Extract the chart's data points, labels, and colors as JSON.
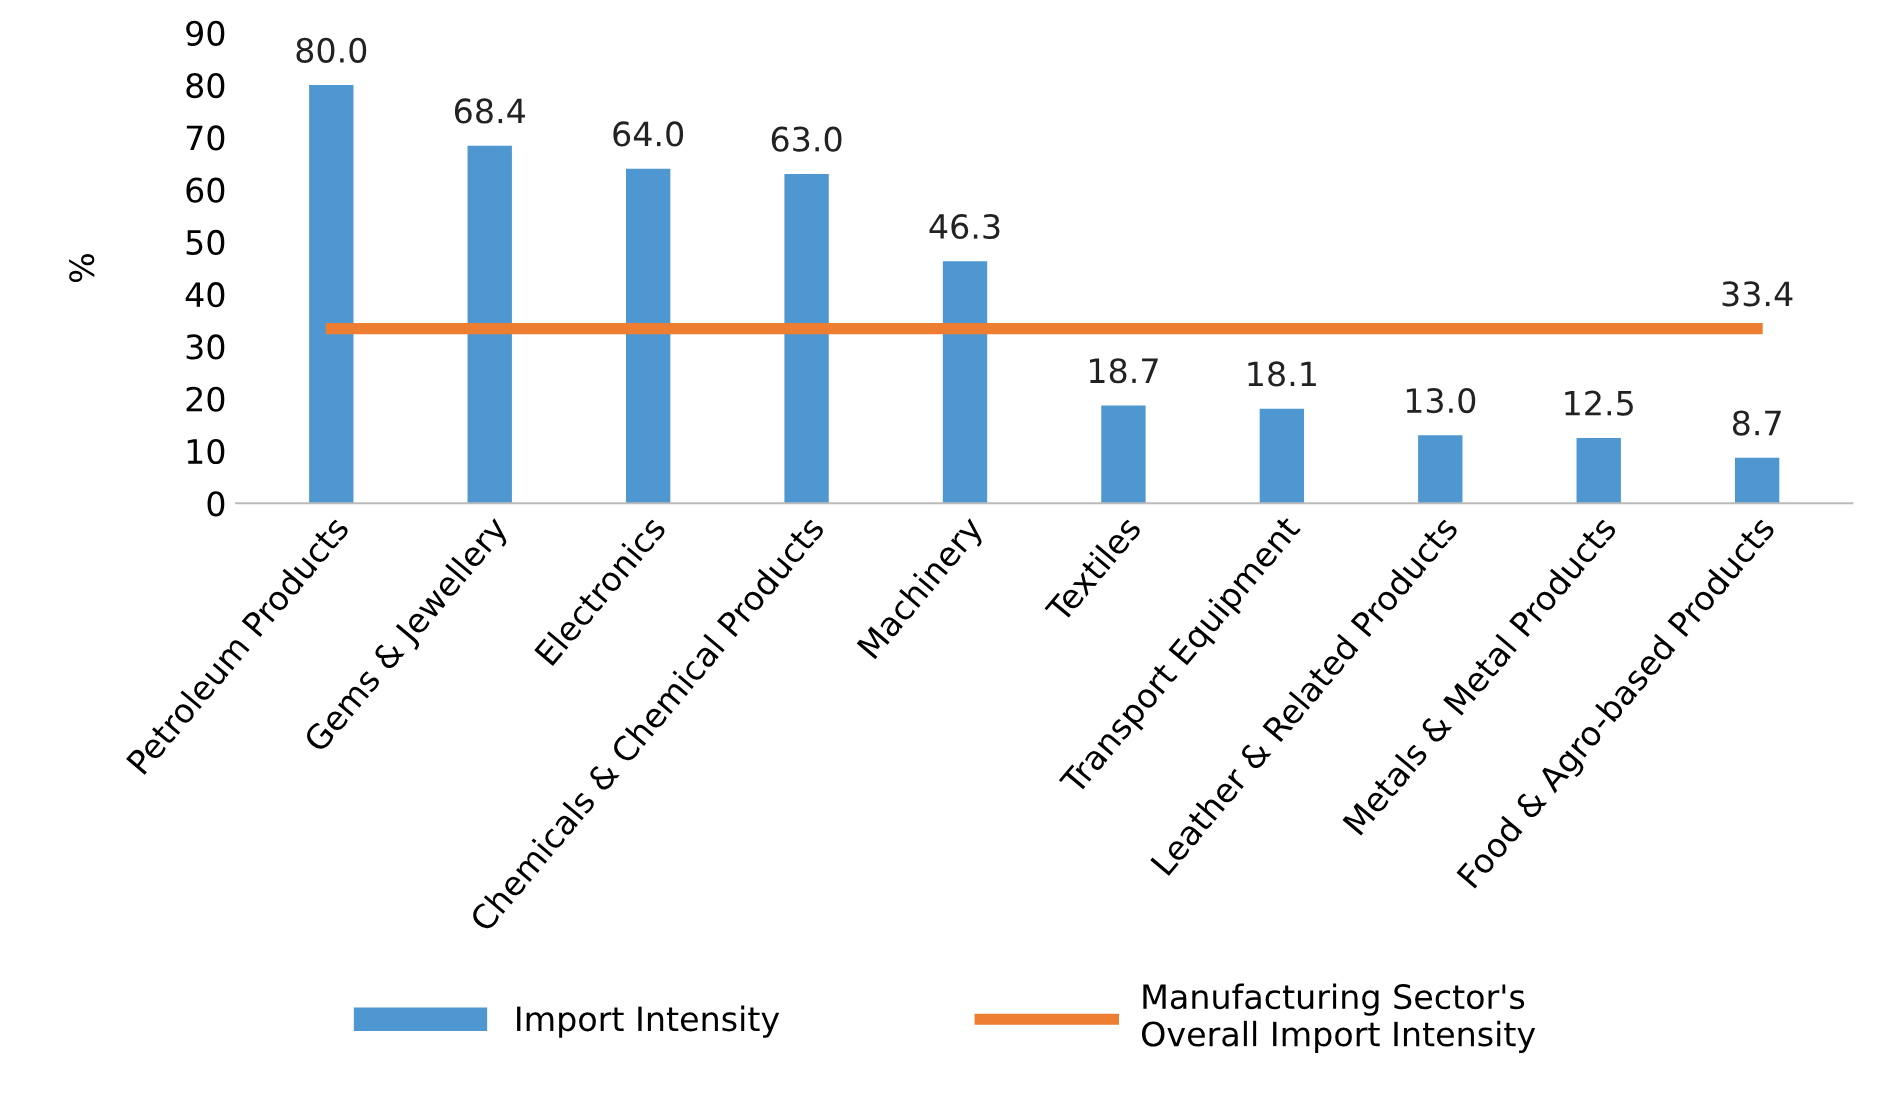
{
  "chart_data": {
    "type": "bar",
    "ylabel": "%",
    "categories": [
      "Petroleum Products",
      "Gems & Jewellery",
      "Electronics",
      "Chemicals & Chemical Products",
      "Machinery",
      "Textiles",
      "Transport Equipment",
      "Leather & Related Products",
      "Metals & Metal Products",
      "Food & Agro-based Products"
    ],
    "series": [
      {
        "name": "Import Intensity",
        "color": "#4e97d1",
        "values": [
          80.0,
          68.4,
          64.0,
          63.0,
          46.3,
          18.7,
          18.1,
          13.0,
          12.5,
          8.7
        ],
        "value_labels": [
          "80.0",
          "68.4",
          "64.0",
          "63.0",
          "46.3",
          "18.7",
          "18.1",
          "13.0",
          "12.5",
          "8.7"
        ]
      },
      {
        "name": "Manufacturing Sector's\nOverall Import Intensity",
        "type": "line",
        "color": "#ed7d31",
        "values": [
          33.4,
          33.4,
          33.4,
          33.4,
          33.4,
          33.4,
          33.4,
          33.4,
          33.4,
          33.4
        ],
        "value_labels": [
          null,
          null,
          null,
          null,
          null,
          null,
          null,
          null,
          null,
          "33.4"
        ]
      }
    ],
    "ylim": [
      0,
      90
    ],
    "yticks": [
      0,
      10,
      20,
      30,
      40,
      50,
      60,
      70,
      80,
      90
    ],
    "grid": false,
    "legend": "bottom",
    "marker": "none"
  }
}
